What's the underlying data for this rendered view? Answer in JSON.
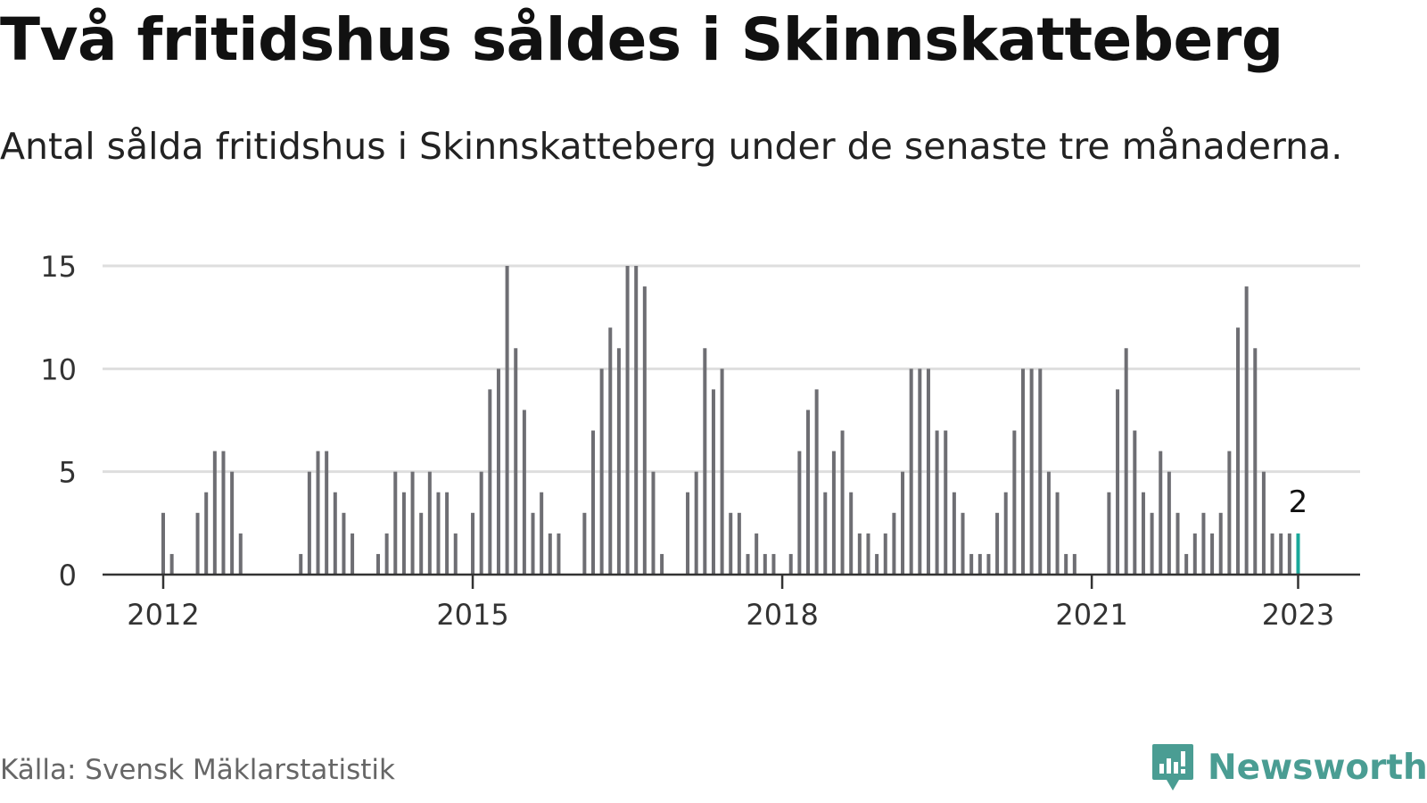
{
  "header": {
    "title": "Två fritidshus såldes i Skinnskatteberg",
    "subtitle": "Antal sålda fritidshus i Skinnskatteberg under de senaste tre månaderna."
  },
  "footer": {
    "source": "Källa: Svensk Mäklarstatistik",
    "brand": "Newsworthy"
  },
  "colors": {
    "bar": "#6e6e73",
    "highlight": "#1aa89a",
    "grid": "#dedede",
    "axis": "#333333",
    "brand": "#4a9d93"
  },
  "chart_data": {
    "type": "bar",
    "title": "Två fritidshus såldes i Skinnskatteberg",
    "subtitle": "Antal sålda fritidshus i Skinnskatteberg under de senaste tre månaderna.",
    "xlabel": "",
    "ylabel": "",
    "ylim": [
      0,
      15
    ],
    "yticks": [
      0,
      5,
      10,
      15
    ],
    "xticks": [
      "2012",
      "2015",
      "2018",
      "2021",
      "2023"
    ],
    "grid": true,
    "start_month": "2012-01",
    "end_month": "2023-01",
    "values": [
      3,
      1,
      0,
      0,
      3,
      4,
      6,
      6,
      5,
      2,
      0,
      0,
      0,
      0,
      0,
      0,
      1,
      5,
      6,
      6,
      4,
      3,
      2,
      0,
      0,
      1,
      2,
      5,
      4,
      5,
      3,
      5,
      4,
      4,
      2,
      0,
      3,
      5,
      9,
      10,
      15,
      11,
      8,
      3,
      4,
      2,
      2,
      0,
      0,
      3,
      7,
      10,
      12,
      11,
      15,
      15,
      14,
      5,
      1,
      0,
      0,
      4,
      5,
      11,
      9,
      10,
      3,
      3,
      1,
      2,
      1,
      1,
      0,
      1,
      6,
      8,
      9,
      4,
      6,
      7,
      4,
      2,
      2,
      1,
      2,
      3,
      5,
      10,
      10,
      10,
      7,
      7,
      4,
      3,
      1,
      1,
      1,
      3,
      4,
      7,
      10,
      10,
      10,
      5,
      4,
      1,
      1,
      0,
      0,
      0,
      4,
      9,
      11,
      7,
      4,
      3,
      6,
      5,
      3,
      1,
      2,
      3,
      2,
      3,
      6,
      12,
      14,
      11,
      5,
      2,
      2,
      2,
      2
    ],
    "highlight": {
      "month": "2023-01",
      "value": 2,
      "label": "2"
    }
  }
}
